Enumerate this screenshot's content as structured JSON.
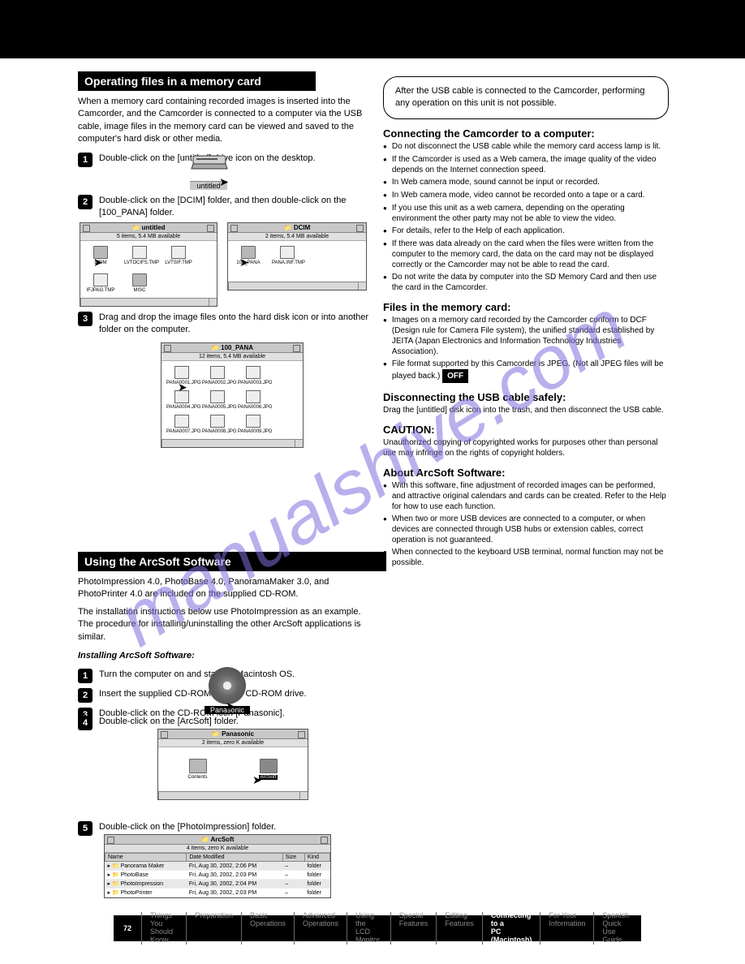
{
  "page_title": "Connecting to a PC (Macintosh)",
  "watermark": "manualshive.com",
  "top_bar_color": "#000000",
  "section1": {
    "header": "Operating files in a memory card",
    "intro": "When a memory card containing recorded images is inserted into the Camcorder, and the Camcorder is connected to a computer via the USB cable, image files in the memory card can be viewed and saved to the computer's hard disk or other media.",
    "step1_label": "1",
    "step1": "Double-click on the [untitled] drive icon on the desktop.",
    "step2_label": "2",
    "step2": "Double-click on the [DCIM] folder, and then double-click on the [100_PANA] folder.",
    "step3_label": "3",
    "step3": "Drag and drop the image files onto the hard disk icon or into another folder on the computer."
  },
  "windows": {
    "untitled": {
      "title": "untitled",
      "status": "5 items, 5.4 MB available",
      "items": [
        "DCIM",
        "LVTOCIFS.TMP",
        "LVTSIF.TMP",
        "IFJPAG.TMP",
        "MISC"
      ]
    },
    "dcim": {
      "title": "DCIM",
      "status": "2 items, 5.4 MB available",
      "items": [
        "100_PANA",
        "PANA.INF.TMP"
      ]
    },
    "pana": {
      "title": "100_PANA",
      "status": "12 items, 5.4 MB available",
      "items": [
        "PANA0001.JPG",
        "PANA0002.JPG",
        "PANA0003.JPG",
        "PANA0004.JPG",
        "PANA0005.JPG",
        "PANA0006.JPG",
        "PANA0007.JPG",
        "PANA0008.JPG",
        "PANA0009.JPG"
      ]
    },
    "panasonic_cd": {
      "title": "Panasonic",
      "status": "2 items, zero K available",
      "items": [
        "Contents",
        "ArcSoft"
      ]
    },
    "arcsoft": {
      "title": "ArcSoft",
      "status": "4 items, zero K available",
      "columns": [
        "Name",
        "Date Modified",
        "Size",
        "Kind"
      ],
      "rows": [
        [
          "Panorama Maker",
          "Fri, Aug 30, 2002, 2:06 PM",
          "–",
          "folder"
        ],
        [
          "PhotoBase",
          "Fri, Aug 30, 2002, 2:03 PM",
          "–",
          "folder"
        ],
        [
          "PhotoImpression",
          "Fri, Aug 30, 2002, 2:04 PM",
          "–",
          "folder"
        ],
        [
          "PhotoPrinter",
          "Fri, Aug 30, 2002, 2:03 PM",
          "–",
          "folder"
        ]
      ]
    }
  },
  "section2": {
    "header": "Using the ArcSoft Software",
    "intro_lines": [
      "PhotoImpression 4.0, PhotoBase 4.0, PanoramaMaker 3.0, and PhotoPrinter 4.0 are included on the supplied CD-ROM.",
      "The installation instructions below use PhotoImpression as an example. The procedure for installing/uninstalling the other ArcSoft applications is similar."
    ],
    "install_h": "Installing ArcSoft Software:",
    "step1_label": "1",
    "step1": "Turn the computer on and start up Macintosh OS.",
    "step2_label": "2",
    "step2": "Insert the supplied CD-ROM into the CD-ROM drive.",
    "step3_label": "3",
    "step3": "Double-click on the CD-ROM icon [Panasonic].",
    "step4_label": "4",
    "step4": "Double-click on the [ArcSoft] folder.",
    "step5_label": "5",
    "step5": "Double-click on the [PhotoImpression] folder."
  },
  "right": {
    "box_text": "After the USB cable is connected to the Camcorder, performing any operation on this unit is not possible.",
    "connect_h": "Connecting the Camcorder to a computer:",
    "connect_bullets": [
      "Do not disconnect the USB cable while the memory card access lamp is lit.",
      "If the Camcorder is used as a Web camera, the image quality of the video depends on the Internet connection speed.",
      "In Web camera mode, sound cannot be input or recorded.",
      "In Web camera mode, video cannot be recorded onto a tape or a card.",
      "If you use this unit as a web camera, depending on the operating environment the other party may not be able to view the video.",
      "For details, refer to the Help of each application.",
      "If there was data already on the card when the files were written from the computer to the memory card, the data on the card may not be displayed correctly or the Camcorder may not be able to read the card.",
      "Do not write the data by computer into the SD Memory Card and then use the card in the Camcorder."
    ],
    "usbdriver_h": "Files in the memory card:",
    "usbdriver_bullets": [
      "Images on a memory card recorded by the Camcorder conform to DCF (Design rule for Camera File system), the unified standard established by JEITA (Japan Electronics and Information Technology Industries Association).",
      "File format supported by this Camcorder is JPEG. (Not all JPEG files will be played back.)"
    ],
    "files_h": "Disconnecting the USB cable safely:",
    "files_text": "Drag the [untitled] disk icon into the trash, and then disconnect the USB cable.",
    "disconnect_h": "CAUTION:",
    "disconnect_text_a": "Unauthorized copying of copyrighted works for purposes other than personal use may infringe on the rights of copyright holders.",
    "word_off_key": "OFF",
    "arcsoft_h": "About ArcSoft Software:",
    "arcsoft_bullets": [
      "With this software, fine adjustment of recorded images can be performed, and attractive original calendars and cards can be created. Refer to the Help for how to use each function.",
      "When two or more USB devices are connected to a computer, or when devices are connected through USB hubs or extension cables, correct operation is not guaranteed.",
      "When connected to the keyboard USB terminal, normal function may not be possible."
    ]
  },
  "footer": {
    "pagenum": "72",
    "segments": [
      "Things You\nShould Know",
      "Preparation",
      "Basic\nOperations",
      "Advanced\nOperations",
      "Using the\nLCD Monitor",
      "Special\nFeatures",
      "Editing\nFeatures",
      "Connecting to a\nPC (Macintosh)",
      "For Your\nInformation",
      "Spanish Quick\nUse Guide"
    ],
    "active_index": 7
  }
}
